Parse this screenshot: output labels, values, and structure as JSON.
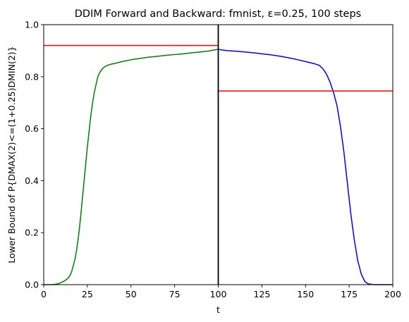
{
  "chart_data": {
    "type": "line",
    "title": "DDIM Forward and Backward: fmnist, ε=0.25, 100 steps",
    "xlabel": "t",
    "ylabel": "Lower Bound of P{DMAX(2)<=(1+0.25)DMIN(2)}",
    "xlim": [
      0,
      200
    ],
    "ylim": [
      0,
      1.0
    ],
    "xticks": [
      0,
      25,
      50,
      75,
      100,
      125,
      150,
      175,
      200
    ],
    "yticks": [
      0.0,
      0.2,
      0.4,
      0.6,
      0.8,
      1.0
    ],
    "xtick_labels": [
      "0",
      "25",
      "50",
      "75",
      "100",
      "125",
      "150",
      "175",
      "200"
    ],
    "ytick_labels": [
      "0.0",
      "0.2",
      "0.4",
      "0.6",
      "0.8",
      "1.0"
    ],
    "grid": false,
    "series": [
      {
        "color": "#008000",
        "x": [
          0,
          5,
          8,
          10,
          12,
          14,
          15,
          16,
          17,
          18,
          19,
          20,
          21,
          22,
          23,
          24,
          25,
          26,
          27,
          28,
          29,
          30,
          31,
          32,
          33,
          34,
          35,
          36,
          38,
          40,
          42,
          45,
          48,
          50,
          55,
          60,
          65,
          70,
          75,
          80,
          85,
          90,
          95,
          97,
          99,
          100
        ],
        "y": [
          0.0,
          0.0,
          0.003,
          0.008,
          0.015,
          0.025,
          0.035,
          0.05,
          0.075,
          0.1,
          0.14,
          0.19,
          0.25,
          0.32,
          0.39,
          0.46,
          0.53,
          0.59,
          0.65,
          0.7,
          0.74,
          0.77,
          0.8,
          0.815,
          0.825,
          0.833,
          0.838,
          0.842,
          0.847,
          0.85,
          0.853,
          0.858,
          0.862,
          0.865,
          0.87,
          0.875,
          0.878,
          0.882,
          0.885,
          0.888,
          0.892,
          0.895,
          0.899,
          0.902,
          0.904,
          0.905
        ]
      },
      {
        "color": "#0000ff",
        "x": [
          100,
          105,
          110,
          115,
          120,
          125,
          130,
          135,
          140,
          145,
          150,
          155,
          158,
          160,
          162,
          164,
          166,
          168,
          170,
          172,
          174,
          176,
          178,
          180,
          182,
          184,
          186,
          188,
          190,
          195,
          200
        ],
        "y": [
          0.905,
          0.9,
          0.898,
          0.895,
          0.892,
          0.888,
          0.884,
          0.879,
          0.873,
          0.866,
          0.858,
          0.85,
          0.843,
          0.83,
          0.81,
          0.78,
          0.74,
          0.69,
          0.61,
          0.51,
          0.39,
          0.27,
          0.17,
          0.09,
          0.04,
          0.012,
          0.003,
          0.001,
          0.0,
          0.0,
          0.0
        ]
      }
    ],
    "hlines": [
      {
        "y": 0.92,
        "xmin": 0,
        "xmax": 100,
        "color": "#ff0000"
      },
      {
        "y": 0.745,
        "xmin": 100,
        "xmax": 200,
        "color": "#ff0000"
      }
    ],
    "vlines": [
      {
        "x": 100,
        "color": "#000000"
      }
    ]
  }
}
